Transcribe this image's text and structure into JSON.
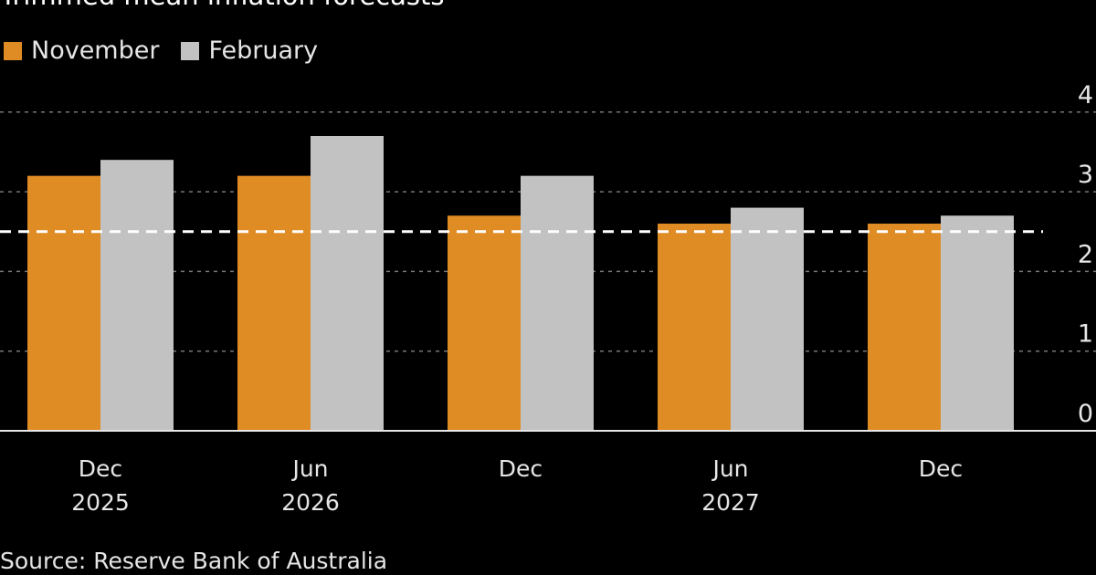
{
  "chart_data": {
    "type": "bar",
    "title": "Trimmed mean inflation forecasts",
    "categories": [
      [
        "Dec",
        "2025"
      ],
      [
        "Jun",
        "2026"
      ],
      [
        "Dec",
        ""
      ],
      [
        "Jun",
        "2027"
      ],
      [
        "Dec",
        ""
      ]
    ],
    "series": [
      {
        "name": "November",
        "color": "#e08c25",
        "values": [
          3.2,
          3.2,
          2.7,
          2.6,
          2.6
        ]
      },
      {
        "name": "February",
        "color": "#c2c2c2",
        "values": [
          3.4,
          3.7,
          3.2,
          2.8,
          2.7
        ]
      }
    ],
    "reference_line": {
      "value": 2.5,
      "style": "dashed",
      "color": "#ffffff"
    },
    "ylim": [
      0,
      4
    ],
    "yticks": [
      "0",
      "1",
      "2",
      "3",
      "4"
    ],
    "grid": true,
    "legend": "top-left",
    "source": "Source: Reserve Bank of Australia"
  }
}
